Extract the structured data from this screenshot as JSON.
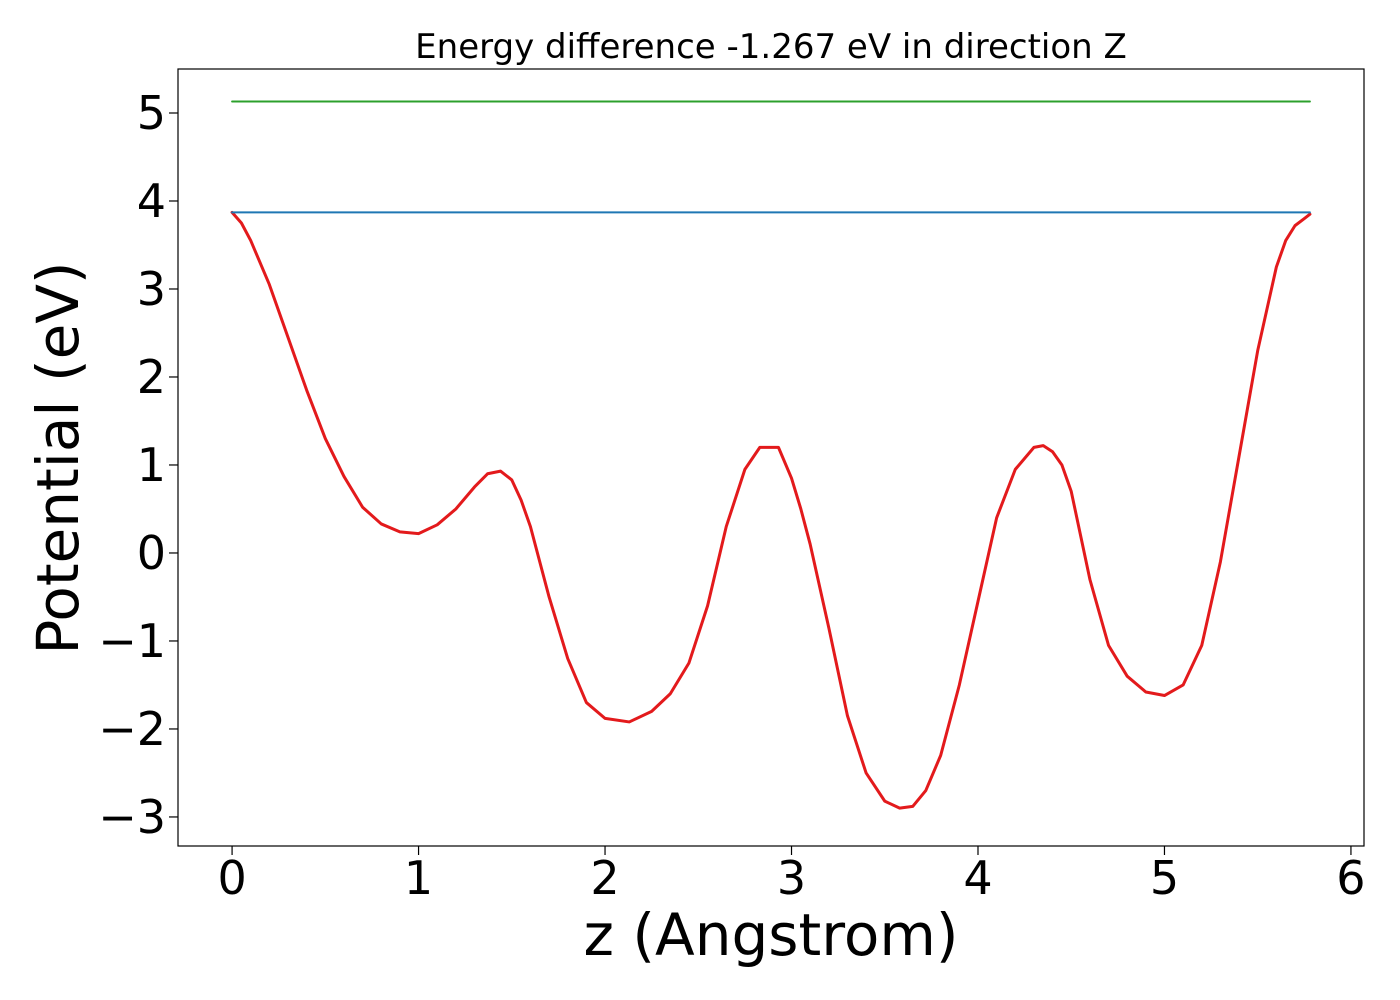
{
  "chart_data": {
    "type": "line",
    "title": "Energy difference -1.267 eV in direction Z",
    "xlabel": "z (Angstrom)",
    "ylabel": "Potential (eV)",
    "xlim": [
      -0.29,
      6.07
    ],
    "ylim": [
      -3.33,
      5.5
    ],
    "xticks": [
      0,
      1,
      2,
      3,
      4,
      5,
      6
    ],
    "xtick_labels": [
      "0",
      "1",
      "2",
      "3",
      "4",
      "5",
      "6"
    ],
    "yticks": [
      -3,
      -2,
      -1,
      0,
      1,
      2,
      3,
      4,
      5
    ],
    "ytick_labels": [
      "−3",
      "−2",
      "−1",
      "0",
      "1",
      "2",
      "3",
      "4",
      "5"
    ],
    "grid": false,
    "colors": {
      "potential": "#e31a1c",
      "level_low": "#1f77b4",
      "level_high": "#2ca02c"
    },
    "series": [
      {
        "color": "#e31a1c",
        "x": [
          0.0,
          0.05,
          0.1,
          0.15,
          0.2,
          0.3,
          0.4,
          0.5,
          0.6,
          0.7,
          0.8,
          0.9,
          1.0,
          1.1,
          1.2,
          1.3,
          1.37,
          1.44,
          1.5,
          1.55,
          1.6,
          1.7,
          1.8,
          1.9,
          2.0,
          2.13,
          2.25,
          2.35,
          2.45,
          2.55,
          2.65,
          2.75,
          2.83,
          2.93,
          3.0,
          3.05,
          3.1,
          3.2,
          3.3,
          3.4,
          3.5,
          3.58,
          3.65,
          3.72,
          3.8,
          3.9,
          4.0,
          4.1,
          4.2,
          4.3,
          4.35,
          4.4,
          4.45,
          4.5,
          4.6,
          4.7,
          4.8,
          4.9,
          5.0,
          5.1,
          5.2,
          5.3,
          5.4,
          5.5,
          5.6,
          5.65,
          5.7,
          5.75,
          5.78
        ],
        "values": [
          3.87,
          3.75,
          3.55,
          3.3,
          3.05,
          2.45,
          1.85,
          1.3,
          0.87,
          0.52,
          0.33,
          0.24,
          0.22,
          0.32,
          0.5,
          0.75,
          0.9,
          0.93,
          0.83,
          0.6,
          0.3,
          -0.5,
          -1.2,
          -1.7,
          -1.88,
          -1.92,
          -1.8,
          -1.6,
          -1.25,
          -0.6,
          0.3,
          0.95,
          1.2,
          1.2,
          0.85,
          0.5,
          0.1,
          -0.85,
          -1.85,
          -2.5,
          -2.82,
          -2.9,
          -2.88,
          -2.7,
          -2.3,
          -1.5,
          -0.55,
          0.4,
          0.95,
          1.2,
          1.22,
          1.15,
          1.0,
          0.7,
          -0.3,
          -1.05,
          -1.4,
          -1.58,
          -1.62,
          -1.5,
          -1.05,
          -0.1,
          1.1,
          2.3,
          3.25,
          3.55,
          3.72,
          3.8,
          3.85
        ]
      },
      {
        "color": "#1f77b4",
        "x": [
          0.0,
          5.78
        ],
        "values": [
          3.87,
          3.87
        ]
      },
      {
        "color": "#2ca02c",
        "x": [
          0.0,
          5.78
        ],
        "values": [
          5.13,
          5.13
        ]
      }
    ]
  }
}
